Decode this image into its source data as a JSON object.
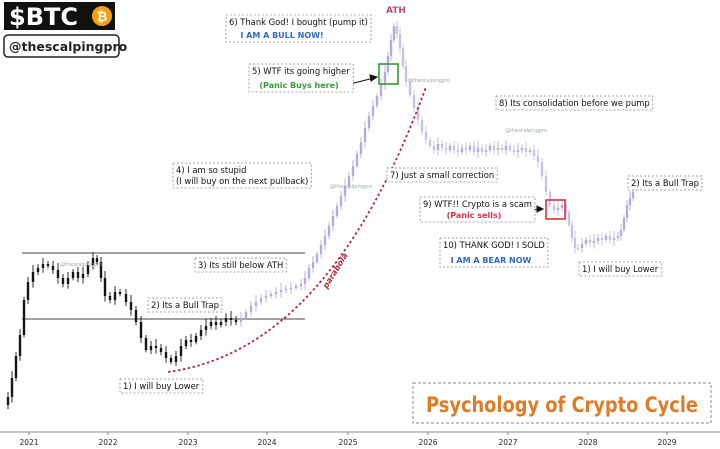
{
  "header": {
    "ticker": "$BTC",
    "coin_symbol": "₿",
    "handle": "@thescalpingpro"
  },
  "colors": {
    "up_candle": "#b8a9d9",
    "down_candle": "#c9c1e4",
    "early_candle": "#161616",
    "box_green": "#2e9a35",
    "box_red": "#d93240",
    "blue_label": "#2f6bc2",
    "green_label": "#3a9a3a",
    "red_label": "#d9324a",
    "parabola": "#b02b3a",
    "title_orange": "#e07b25",
    "ath_label": "#c4476f"
  },
  "chart_data": {
    "type": "candlestick",
    "title": "Psychology of Crypto Cycle",
    "x_ticks": [
      "2021",
      "2022",
      "2023",
      "2024",
      "2025",
      "2026",
      "2027",
      "2028",
      "2029"
    ],
    "x_range": [
      "2021-01",
      "2029-04"
    ],
    "grid": false,
    "watermark": "@thescalpingpro",
    "reference_lines": [
      "previous ATH",
      "bull trap level"
    ],
    "labels": {
      "ath": "ATH",
      "parabola": "parabola"
    },
    "annotations": [
      {
        "id": "bought",
        "text": "6) Thank God! I bought (pump it)",
        "sub": "I AM A BULL NOW!",
        "sub_color": "blue"
      },
      {
        "id": "higher",
        "text": "5) WTF its going higher",
        "sub": "(Panic Buys here)",
        "sub_color": "green"
      },
      {
        "id": "consolidation",
        "text": "8) Its consolidation before we pump"
      },
      {
        "id": "stupid",
        "text": "4)  I am so stupid",
        "text2": "(I will buy on the next pullback)"
      },
      {
        "id": "correction",
        "text": "7) Just a small correction"
      },
      {
        "id": "bulltrap2",
        "text": "2) Its a Bull Trap"
      },
      {
        "id": "scam",
        "text": "9)  WTF!! Crypto is a scam",
        "sub": "(Panic sells)",
        "sub_color": "red"
      },
      {
        "id": "sold",
        "text": "10) THANK GOD! I SOLD",
        "sub": "I AM A BEAR NOW",
        "sub_color": "blue"
      },
      {
        "id": "belowath",
        "text": "3) Its still below ATH"
      },
      {
        "id": "buylower2",
        "text": "1) I will buy Lower"
      },
      {
        "id": "bulltrap1",
        "text": "2) Its a Bull Trap"
      },
      {
        "id": "buylower1",
        "text": "1) I will buy Lower"
      }
    ]
  }
}
